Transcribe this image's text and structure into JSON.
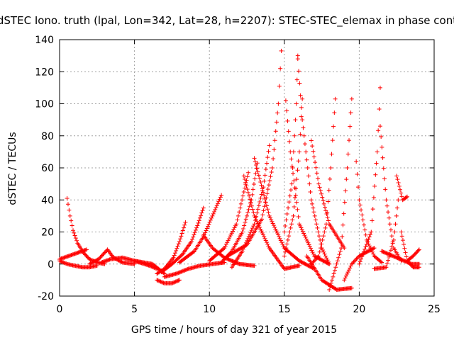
{
  "chart_data": {
    "type": "scatter",
    "title": "dSTEC Iono. truth (lpal, Lon=342, Lat=28, h=2207): STEC-STEC_elemax in phase cont",
    "xlabel": "GPS time / hours of day 321 of year 2015",
    "ylabel": "dSTEC  / TECUs",
    "xlim": [
      0,
      25
    ],
    "ylim": [
      -20,
      140
    ],
    "xticks": [
      0,
      5,
      10,
      15,
      20,
      25
    ],
    "yticks": [
      -20,
      0,
      20,
      40,
      60,
      80,
      100,
      120,
      140
    ],
    "grid": true,
    "marker": "+",
    "color": "#ff0000",
    "series": [
      {
        "x": [
          0.0,
          0.3,
          0.6,
          0.9,
          1.2,
          1.5,
          1.8
        ],
        "y": [
          3,
          4,
          5,
          6,
          7,
          8,
          9
        ]
      },
      {
        "x": [
          0.5,
          0.7,
          0.9,
          1.2,
          1.6,
          2.0,
          2.5,
          3.0
        ],
        "y": [
          41,
          30,
          21,
          13,
          7,
          3,
          1,
          0
        ]
      },
      {
        "x": [
          0.0,
          0.5,
          1.0,
          1.5,
          2.0,
          2.5
        ],
        "y": [
          2,
          0,
          -1,
          -2,
          -2,
          -1
        ]
      },
      {
        "x": [
          2.0,
          2.6,
          3.2,
          3.6,
          4.2,
          5.0
        ],
        "y": [
          0,
          3,
          9,
          4,
          1,
          0
        ]
      },
      {
        "x": [
          2.8,
          3.4,
          4.2,
          5.0,
          6.0,
          6.5
        ],
        "y": [
          1,
          3,
          4,
          2,
          -1,
          -3
        ]
      },
      {
        "x": [
          5.0,
          5.6,
          6.2,
          6.6,
          7.0
        ],
        "y": [
          2,
          1,
          0,
          -3,
          -6
        ]
      },
      {
        "x": [
          6.5,
          7.0,
          7.6,
          8.0,
          8.4
        ],
        "y": [
          -6,
          -3,
          4,
          14,
          26
        ]
      },
      {
        "x": [
          6.5,
          7.0,
          7.5,
          8.0
        ],
        "y": [
          -10,
          -12,
          -12,
          -10
        ]
      },
      {
        "x": [
          6.8,
          7.5,
          8.2,
          8.8,
          9.2,
          9.6
        ],
        "y": [
          -5,
          0,
          6,
          14,
          24,
          35
        ]
      },
      {
        "x": [
          7.0,
          7.8,
          8.6,
          9.4,
          10.2,
          11.0
        ],
        "y": [
          -8,
          -6,
          -3,
          -1,
          0,
          1
        ]
      },
      {
        "x": [
          8.0,
          9.0,
          9.6,
          10.2,
          10.8
        ],
        "y": [
          1,
          8,
          17,
          30,
          43
        ]
      },
      {
        "x": [
          9.6,
          10.2,
          11.0,
          12.0,
          13.0
        ],
        "y": [
          18,
          10,
          4,
          0,
          -1
        ]
      },
      {
        "x": [
          10.0,
          11.0,
          11.8,
          12.3,
          12.6
        ],
        "y": [
          2,
          10,
          25,
          45,
          57
        ]
      },
      {
        "x": [
          10.8,
          11.5,
          12.2,
          12.8,
          13.2
        ],
        "y": [
          1,
          8,
          20,
          40,
          63
        ]
      },
      {
        "x": [
          11.5,
          12.2,
          13.0,
          13.6,
          14.0
        ],
        "y": [
          -2,
          8,
          25,
          48,
          74
        ]
      },
      {
        "x": [
          11.2,
          12.5,
          13.5,
          14.2,
          14.6,
          14.8
        ],
        "y": [
          5,
          12,
          28,
          60,
          100,
          133
        ]
      },
      {
        "x": [
          12.3,
          13.0,
          14.0,
          15.0,
          16.0
        ],
        "y": [
          55,
          30,
          10,
          -3,
          -1
        ]
      },
      {
        "x": [
          13.0,
          14.0,
          15.0,
          16.0,
          17.0
        ],
        "y": [
          66,
          30,
          10,
          2,
          -3
        ]
      },
      {
        "x": [
          15.0,
          15.6,
          16.0,
          16.2
        ],
        "y": [
          5,
          30,
          70,
          103
        ]
      },
      {
        "x": [
          15.0,
          15.5,
          15.8,
          15.9
        ],
        "y": [
          20,
          50,
          100,
          130
        ]
      },
      {
        "x": [
          15.1,
          15.4,
          16.0,
          17.0,
          18.0
        ],
        "y": [
          102,
          70,
          25,
          5,
          0
        ]
      },
      {
        "x": [
          15.9,
          16.2,
          16.8,
          17.5,
          18.0
        ],
        "y": [
          128,
          90,
          40,
          10,
          0
        ]
      },
      {
        "x": [
          16.8,
          17.3,
          17.8,
          18.1,
          18.4
        ],
        "y": [
          0,
          5,
          25,
          60,
          103
        ]
      },
      {
        "x": [
          16.8,
          17.3,
          18.0,
          19.0
        ],
        "y": [
          77,
          50,
          25,
          10
        ]
      },
      {
        "x": [
          16.5,
          17.5,
          18.5,
          19.5
        ],
        "y": [
          5,
          -10,
          -16,
          -15
        ]
      },
      {
        "x": [
          18.0,
          18.8,
          19.2,
          19.5
        ],
        "y": [
          -16,
          10,
          60,
          103
        ]
      },
      {
        "x": [
          19.0,
          19.5,
          20.0,
          21.0
        ],
        "y": [
          -10,
          0,
          5,
          10
        ]
      },
      {
        "x": [
          19.8,
          20.0,
          20.5,
          21.0,
          21.5
        ],
        "y": [
          64,
          40,
          15,
          5,
          1
        ]
      },
      {
        "x": [
          20.0,
          20.8,
          21.2,
          21.4
        ],
        "y": [
          0,
          20,
          70,
          110
        ]
      },
      {
        "x": [
          21.4,
          21.8,
          22.3,
          22.8
        ],
        "y": [
          86,
          40,
          10,
          2
        ]
      },
      {
        "x": [
          21.0,
          21.8,
          22.3,
          22.6
        ],
        "y": [
          -3,
          -2,
          15,
          40
        ]
      },
      {
        "x": [
          22.5,
          22.9,
          23.2
        ],
        "y": [
          55,
          40,
          42
        ]
      },
      {
        "x": [
          22.8,
          23.2,
          23.6,
          24.0
        ],
        "y": [
          20,
          2,
          -2,
          -2
        ]
      },
      {
        "x": [
          21.5,
          22.5,
          23.5,
          24.0
        ],
        "y": [
          8,
          4,
          0,
          0
        ]
      },
      {
        "x": [
          23.2,
          23.6,
          24.0
        ],
        "y": [
          2,
          5,
          9
        ]
      }
    ]
  }
}
